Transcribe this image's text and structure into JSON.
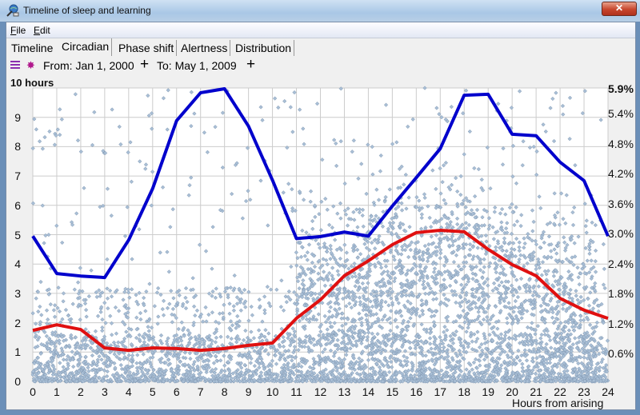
{
  "window": {
    "title": "Timeline of sleep and learning",
    "close_label": "✕"
  },
  "menu": {
    "items": [
      {
        "label": "File",
        "accel": "F",
        "rest": "ile"
      },
      {
        "label": "Edit",
        "accel": "E",
        "rest": "dit"
      }
    ]
  },
  "tabs": [
    {
      "label": "Timeline",
      "active": false
    },
    {
      "label": "Circadian",
      "active": true
    },
    {
      "label": "Phase shift",
      "active": false
    },
    {
      "label": "Alertness",
      "active": false
    },
    {
      "label": "Distribution",
      "active": false
    }
  ],
  "toolbar": {
    "from_label": "From: Jan 1, 2000",
    "to_label": "To: May 1, 2009",
    "plus": "+",
    "icons": [
      "list-icon",
      "sun-icon"
    ]
  },
  "colors": {
    "blue_series": "#0000cc",
    "red_series": "#e01010",
    "scatter_fill": "#a9bfd6",
    "scatter_stroke": "#7f96b0",
    "grid": "#cccccc"
  },
  "chart_data": {
    "type": "scatter",
    "title": "",
    "top_left_label": "10 hours",
    "xlabel": "Hours from arising",
    "ylabel": "",
    "x_ticks": [
      "0",
      "1",
      "2",
      "3",
      "4",
      "5",
      "6",
      "7",
      "8",
      "9",
      "10",
      "11",
      "12",
      "13",
      "14",
      "15",
      "16",
      "17",
      "18",
      "19",
      "20",
      "21",
      "22",
      "23",
      "24"
    ],
    "y_ticks_left": [
      "0",
      "1",
      "2",
      "3",
      "4",
      "5",
      "6",
      "7",
      "8",
      "9"
    ],
    "y_ticks_right": [
      "0.6%",
      "1.2%",
      "1.8%",
      "2.4%",
      "3.0%",
      "3.6%",
      "4.2%",
      "4.8%",
      "5.4%",
      "5.9%"
    ],
    "xlim": [
      0,
      24
    ],
    "ylim_left": [
      0,
      10
    ],
    "ylim_right_percent": [
      0,
      5.9
    ],
    "grid": true,
    "series": [
      {
        "name": "Blue line (percent, right axis)",
        "kind": "line",
        "color": "#0000cc",
        "x": [
          0,
          1,
          2,
          3,
          4,
          5,
          6,
          7,
          8,
          9,
          10,
          11,
          12,
          13,
          14,
          15,
          16,
          17,
          18,
          19,
          20,
          21,
          22,
          23,
          24
        ],
        "values": [
          2.95,
          2.2,
          2.15,
          2.12,
          2.87,
          3.9,
          5.26,
          5.82,
          5.9,
          5.15,
          4.07,
          2.9,
          2.94,
          3.03,
          2.95,
          3.55,
          4.12,
          4.7,
          5.77,
          5.79,
          4.99,
          4.96,
          4.43,
          4.06,
          2.95
        ]
      },
      {
        "name": "Red line (hours, left axis)",
        "kind": "line",
        "color": "#e01010",
        "x": [
          0,
          1,
          2,
          3,
          4,
          5,
          6,
          7,
          8,
          9,
          10,
          11,
          12,
          13,
          14,
          15,
          16,
          17,
          18,
          19,
          20,
          21,
          22,
          23,
          24
        ],
        "values": [
          1.74,
          1.93,
          1.77,
          1.14,
          1.06,
          1.14,
          1.12,
          1.06,
          1.12,
          1.23,
          1.31,
          2.15,
          2.78,
          3.6,
          4.11,
          4.66,
          5.07,
          5.15,
          5.1,
          4.5,
          3.98,
          3.6,
          2.83,
          2.43,
          2.15
        ]
      },
      {
        "name": "Individual observations (scatter, left axis)",
        "kind": "scatter",
        "description": "Thousands of points spread 0–10 h; dense band 0–1.5 h across all hours and a dense cloud around 2–6 h for hours 12–21"
      }
    ]
  }
}
